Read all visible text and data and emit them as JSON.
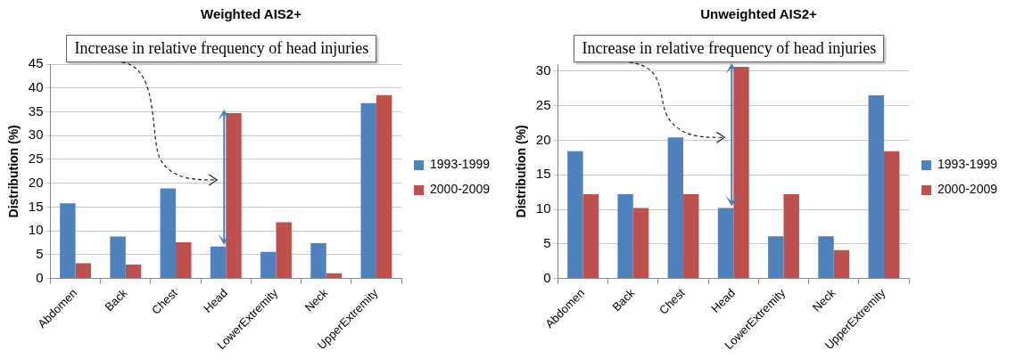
{
  "chart_data": [
    {
      "type": "bar",
      "title": "Weighted AIS2+",
      "ylabel": "Distribution (%)",
      "categories": [
        "Abdomen",
        "Back",
        "Chest",
        "Head",
        "LowerExtremity",
        "Neck",
        "UpperExtremity"
      ],
      "series": [
        {
          "name": "1993-1999",
          "color": "#4f81bd",
          "values": [
            15.8,
            8.8,
            18.9,
            6.7,
            5.6,
            7.4,
            36.8
          ]
        },
        {
          "name": "2000-2009",
          "color": "#c0504d",
          "values": [
            3.2,
            2.9,
            7.6,
            34.7,
            11.8,
            1.1,
            38.5
          ]
        }
      ],
      "ylim": [
        0,
        45
      ],
      "yticks": [
        0,
        5,
        10,
        15,
        20,
        25,
        30,
        35,
        40,
        45
      ],
      "grid": "y",
      "legend": "right",
      "annotations": [
        "Increase in relative frequency of head injuries"
      ]
    },
    {
      "type": "bar",
      "title": "Unweighted AIS2+",
      "ylabel": "Distribution (%)",
      "categories": [
        "Abdomen",
        "Back",
        "Chest",
        "Head",
        "LowerExtremity",
        "Neck",
        "UpperExtremity"
      ],
      "series": [
        {
          "name": "1993-1999",
          "color": "#4f81bd",
          "values": [
            18.4,
            12.2,
            20.4,
            10.2,
            6.1,
            6.1,
            26.5
          ]
        },
        {
          "name": "2000-2009",
          "color": "#c0504d",
          "values": [
            12.2,
            10.2,
            12.2,
            30.6,
            12.2,
            4.1,
            18.4
          ]
        }
      ],
      "ylim": [
        0,
        31
      ],
      "yticks": [
        0,
        5,
        10,
        15,
        20,
        25,
        30
      ],
      "grid": "y",
      "legend": "right",
      "annotations": [
        "Increase in relative frequency of head injuries"
      ]
    }
  ]
}
